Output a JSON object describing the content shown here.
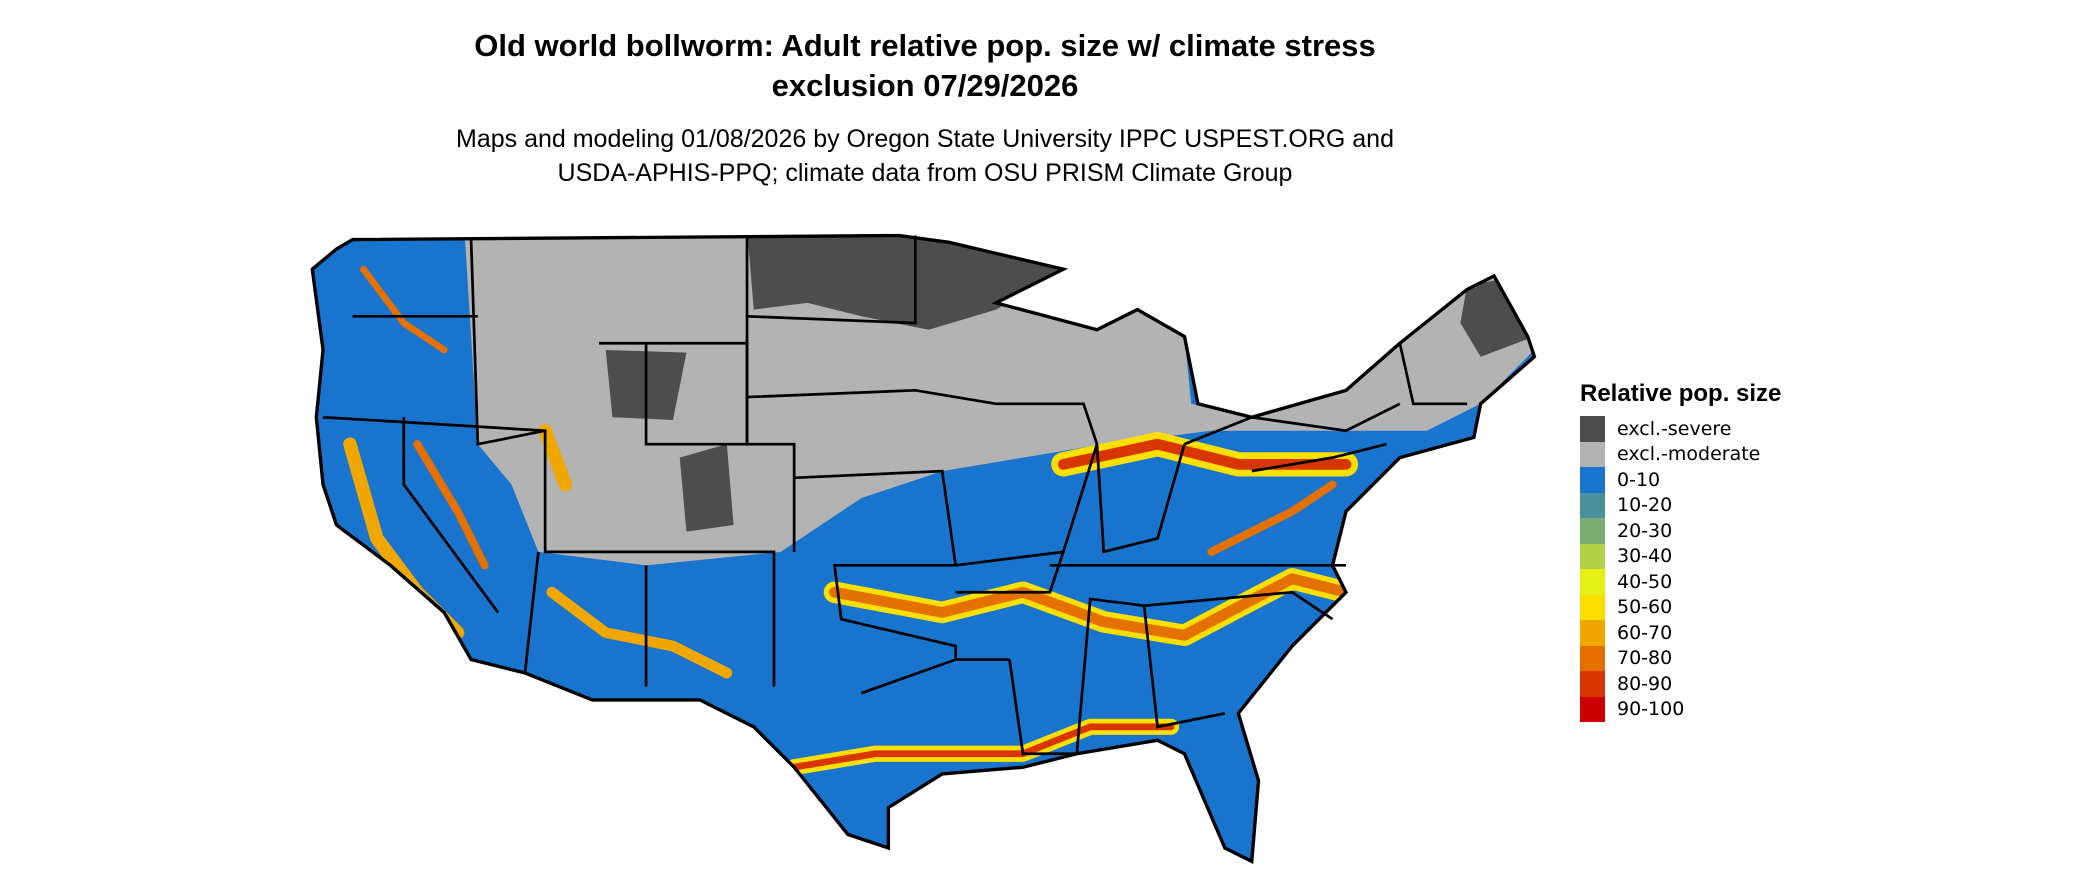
{
  "title": {
    "line1": "Old world bollworm: Adult relative pop. size w/ climate stress",
    "line2": "exclusion 07/29/2026"
  },
  "subtitle": {
    "line1": "Maps and modeling 01/08/2026 by Oregon State University IPPC USPEST.ORG and",
    "line2": "USDA-APHIS-PPQ; climate data from OSU PRISM Climate Group"
  },
  "map": {
    "region": "Contiguous United States",
    "state_borders": true
  },
  "legend": {
    "title": "Relative pop. size",
    "items": [
      {
        "label": "excl.-severe",
        "color": "#4d4d4d"
      },
      {
        "label": "excl.-moderate",
        "color": "#b3b3b3"
      },
      {
        "label": "0-10",
        "color": "#1874cd"
      },
      {
        "label": "10-20",
        "color": "#4a919b"
      },
      {
        "label": "20-30",
        "color": "#7cad73"
      },
      {
        "label": "30-40",
        "color": "#b3d147"
      },
      {
        "label": "40-50",
        "color": "#e5f016"
      },
      {
        "label": "50-60",
        "color": "#f9e000"
      },
      {
        "label": "60-70",
        "color": "#f0a800"
      },
      {
        "label": "70-80",
        "color": "#e47000"
      },
      {
        "label": "80-90",
        "color": "#d93500"
      },
      {
        "label": "90-100",
        "color": "#cc0000"
      }
    ]
  }
}
